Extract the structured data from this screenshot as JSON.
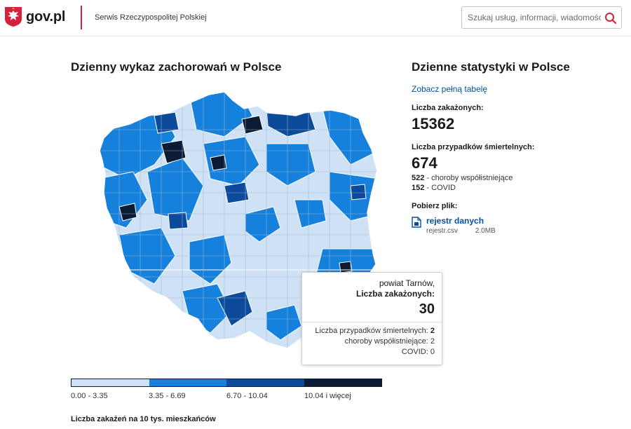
{
  "header": {
    "site_name": "gov.pl",
    "tagline": "Serwis Rzeczypospolitej Polskiej",
    "search_placeholder": "Szukaj usług, informacji, wiadomości",
    "brand_color": "#d4213d"
  },
  "map_section": {
    "title": "Dzienny wykaz zachorowań w Polsce",
    "tooltip": {
      "name": "powiat Tarnów,",
      "cases_label": "Liczba zakażonych:",
      "cases_value": "30",
      "deaths_label": "Liczba przypadków śmiertelnych:",
      "deaths_value": "2",
      "comorb_label": "choroby współistniejące:",
      "comorb_value": "2",
      "covid_label": "COVID:",
      "covid_value": "0"
    },
    "legend": {
      "ranges": [
        "0.00 - 3.35",
        "3.35 - 6.69",
        "6.70 - 10.04",
        "10.04 i więcej"
      ],
      "colors": [
        "#cfe2f5",
        "#1581dc",
        "#0c4a9c",
        "#0a1b33"
      ],
      "caption": "Liczba zakażeń na 10 tys. mieszkańców"
    }
  },
  "stats": {
    "title": "Dzienne statystyki w Polsce",
    "full_table_link": "Zobacz pełną tabelę",
    "infected_label": "Liczba zakażonych:",
    "infected_value": "15362",
    "deaths_label": "Liczba przypadków śmiertelnych:",
    "deaths_value": "674",
    "comorb_count": "522",
    "comorb_label": "- choroby współistniejące",
    "covid_count": "152",
    "covid_label": "- COVID",
    "download_label": "Pobierz plik:",
    "file_link": "rejestr danych",
    "file_name": "rejestr.csv",
    "file_size": "2.0MB"
  }
}
